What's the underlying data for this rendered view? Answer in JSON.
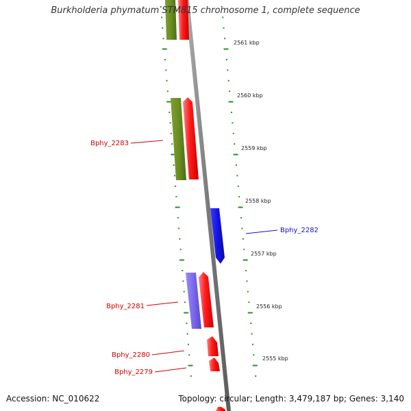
{
  "title": "Burkholderia phymatum STM815 chromosome 1, complete sequence",
  "footer": {
    "accession": "Accession: NC_010622",
    "topology": "Topology: circular; Length: 3,479,187 bp; Genes: 3,140"
  },
  "colors": {
    "backbone": "#8a8a8a",
    "ticks": "#2e8b2e",
    "red_gene": "#ff1a1a",
    "olive_gene": "#6b8e23",
    "blue_gene": "#1414e6",
    "lavender_gene": "#7b68ee",
    "red_label": "#cc0000",
    "blue_label": "#1010cc"
  },
  "kbp_labels": [
    "2561 kbp",
    "2560 kbp",
    "2559 kbp",
    "2558 kbp",
    "2557 kbp",
    "2556 kbp",
    "2555 kbp"
  ],
  "gene_labels": {
    "g2283": "Bphy_2283",
    "g2282": "Bphy_2282",
    "g2281": "Bphy_2281",
    "g2280": "Bphy_2280",
    "g2279": "Bphy_2279"
  }
}
